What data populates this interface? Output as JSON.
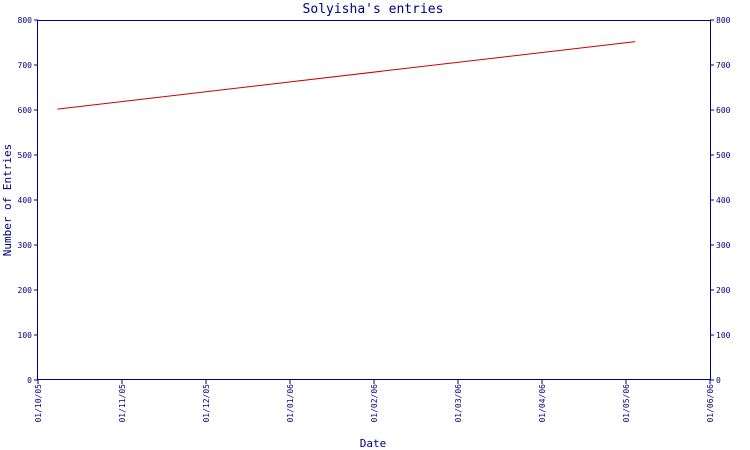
{
  "chart_data": {
    "type": "line",
    "title": "Solyisha's entries",
    "xlabel": "Date",
    "ylabel": "Number of Entries",
    "x_ticks": [
      "01/10/05",
      "01/11/05",
      "01/12/05",
      "01/01/06",
      "01/02/06",
      "01/03/06",
      "01/04/06",
      "01/05/06",
      "01/06/06"
    ],
    "x_start": "2005-10-01",
    "x_end": "2006-06-01",
    "ylim": [
      0,
      800
    ],
    "y_ticks": [
      0,
      100,
      200,
      300,
      400,
      500,
      600,
      700,
      800
    ],
    "series": [
      {
        "points": [
          {
            "x": "2005-10-08",
            "y": 602
          },
          {
            "x": "2006-05-05",
            "y": 752
          }
        ]
      }
    ],
    "grid": false,
    "right_axis": true
  },
  "colors": {
    "axis": "#000080",
    "line": "#cc0000",
    "background": "#ffffff"
  }
}
